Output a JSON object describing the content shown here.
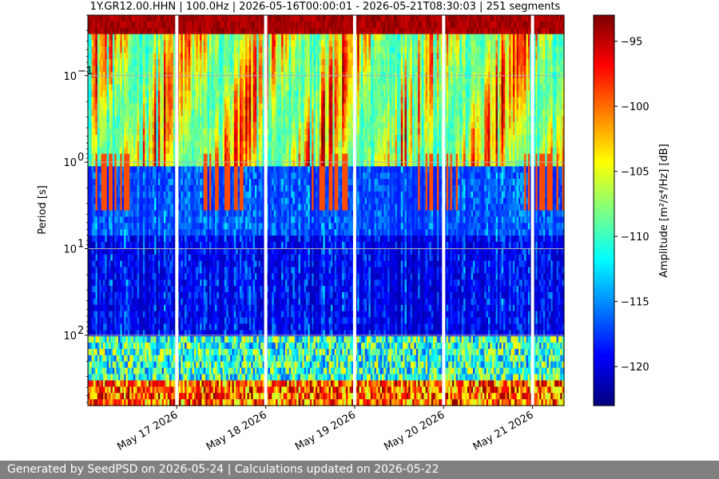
{
  "chart_data": {
    "type": "heatmap",
    "title": "1Y.GR12.00.HHN | 100.0Hz | 2026-05-16T00:00:01 - 2026-05-21T08:30:03 | 251 segments",
    "ylabel": "Period [s]",
    "y_scale": "log",
    "y_inverted": true,
    "ylim": [
      0.02,
      650
    ],
    "y_ticks": [
      {
        "value": 0.1,
        "label": "10",
        "exp": "−1"
      },
      {
        "value": 1,
        "label": "10",
        "exp": "0"
      },
      {
        "value": 10,
        "label": "10",
        "exp": "1"
      },
      {
        "value": 100,
        "label": "10",
        "exp": "2"
      }
    ],
    "x_range": [
      "2026-05-16T00:00:01",
      "2026-05-21T08:30:03"
    ],
    "x_ticks": [
      {
        "value": "2026-05-17",
        "label": "May 17 2026"
      },
      {
        "value": "2026-05-18",
        "label": "May 18 2026"
      },
      {
        "value": "2026-05-19",
        "label": "May 19 2026"
      },
      {
        "value": "2026-05-20",
        "label": "May 20 2026"
      },
      {
        "value": "2026-05-21",
        "label": "May 21 2026"
      }
    ],
    "segments": 251,
    "gaps": [
      "2026-05-17",
      "2026-05-18",
      "2026-05-19",
      "2026-05-20",
      "2026-05-21"
    ],
    "grid": true,
    "colormap": "jet",
    "colorbar": {
      "label": "Amplitude [m²/s⁴/Hz] [dB]",
      "range": [
        -123,
        -93
      ],
      "ticks": [
        {
          "value": -95,
          "label": "−95"
        },
        {
          "value": -100,
          "label": "−100"
        },
        {
          "value": -105,
          "label": "−105"
        },
        {
          "value": -110,
          "label": "−110"
        },
        {
          "value": -115,
          "label": "−115"
        },
        {
          "value": -120,
          "label": "−120"
        }
      ]
    }
  },
  "footer": {
    "text": "Generated by SeedPSD on 2026-05-24 | Calculations updated on 2026-05-22"
  }
}
